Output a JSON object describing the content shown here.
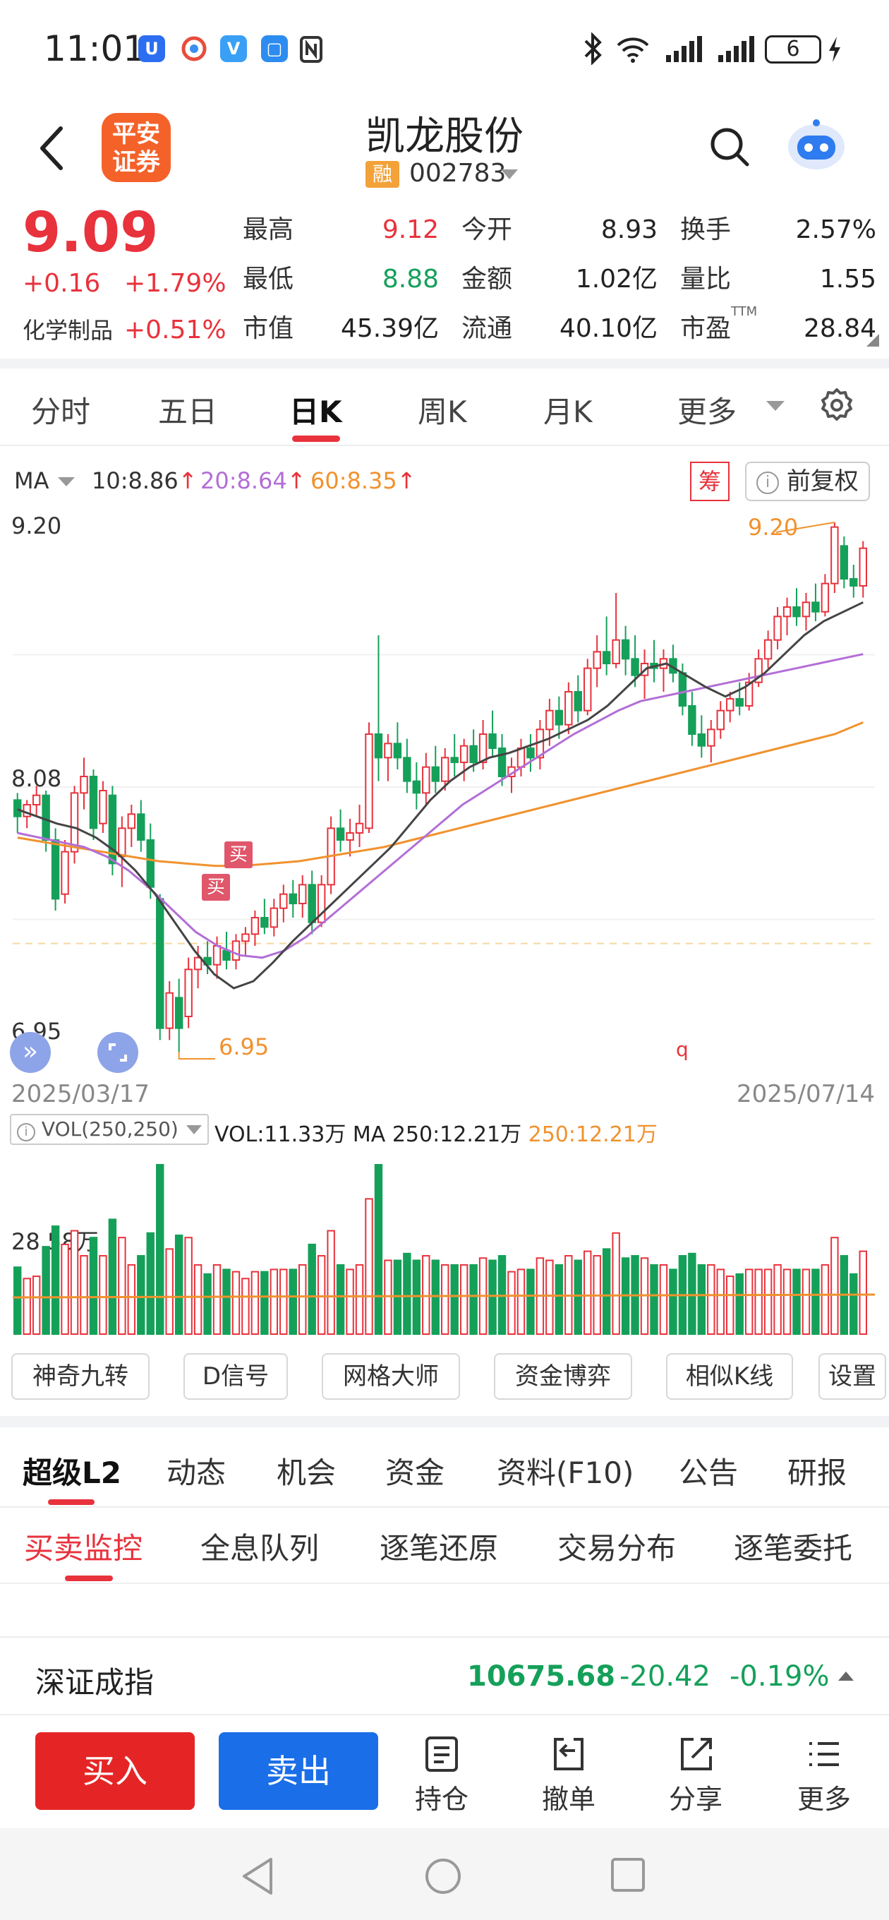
{
  "status_bar": {
    "time": "11:01",
    "battery": "6",
    "icons": [
      "app-icon-1",
      "browser-icon",
      "app-icon-3",
      "message-icon",
      "nfc-icon",
      "bluetooth-icon",
      "wifi-icon",
      "signal-icon",
      "signal-icon-2",
      "battery-icon",
      "charging-icon"
    ]
  },
  "header": {
    "logo_line1": "平安",
    "logo_line2": "证券",
    "stock_name": "凯龙股份",
    "badge": "融",
    "code": "002783"
  },
  "quote": {
    "price": "9.09",
    "change": "+0.16",
    "change_pct": "+1.79%",
    "sector": "化学制品",
    "sector_pct": "+0.51%",
    "stats": [
      {
        "label": "最高",
        "value": "9.12",
        "color": "red"
      },
      {
        "label": "今开",
        "value": "8.93",
        "color": "black"
      },
      {
        "label": "换手",
        "value": "2.57%",
        "color": "black"
      },
      {
        "label": "最低",
        "value": "8.88",
        "color": "green"
      },
      {
        "label": "金额",
        "value": "1.02亿",
        "color": "black"
      },
      {
        "label": "量比",
        "value": "1.55",
        "color": "black"
      },
      {
        "label": "市值",
        "value": "45.39亿",
        "color": "black"
      },
      {
        "label": "流通",
        "value": "40.10亿",
        "color": "black"
      },
      {
        "label": "市盈",
        "value": "28.84",
        "color": "black"
      }
    ],
    "pe_sup": "TTM"
  },
  "periods": {
    "tabs": [
      "分时",
      "五日",
      "日K",
      "周K",
      "月K",
      "更多"
    ],
    "active": "日K"
  },
  "ma_legend": {
    "label": "MA",
    "ma10": "10:8.86",
    "ma20": "20:8.64",
    "ma60": "60:8.35",
    "chip_label": "筹",
    "adjust_label": "前复权"
  },
  "kline": {
    "y_top": "9.20",
    "y_mid": "8.08",
    "y_bottom": "6.95",
    "max_label": "9.20",
    "min_label": "6.95",
    "date_start": "2025/03/17",
    "date_end": "2025/07/14",
    "marker": "q",
    "buy_marker": "买"
  },
  "volume": {
    "indicator": "VOL(250,250)",
    "vol_text": "VOL:11.33万",
    "ma_text": "MA 250:12.21万",
    "ma_orange": "250:12.21万",
    "axis_label": "28.58万"
  },
  "functions": [
    "神奇九转",
    "D信号",
    "网格大师",
    "资金博弈",
    "相似K线",
    "设置"
  ],
  "l2_tabs": [
    "超级L2",
    "动态",
    "机会",
    "资金",
    "资料(F10)",
    "公告",
    "研报"
  ],
  "sub_tabs": [
    "买卖监控",
    "全息队列",
    "逐笔还原",
    "交易分布",
    "逐笔委托"
  ],
  "index_bar": {
    "name": "深证成指",
    "value": "10675.68",
    "change": "-20.42",
    "change_pct": "-0.19%"
  },
  "actions": {
    "buy": "买入",
    "sell": "卖出",
    "items": [
      "持仓",
      "撤单",
      "分享",
      "更多"
    ]
  },
  "colors": {
    "up": "#e8323c",
    "down": "#15a05a",
    "ma10": "#444444",
    "ma20": "#b36ed6",
    "ma60": "#f0922e",
    "buy_button": "#e52525",
    "sell_button": "#1a6ee8"
  },
  "chart_data": {
    "type": "candlestick",
    "x_range": [
      "2025/03/17",
      "2025/07/14"
    ],
    "ylim": [
      6.95,
      9.2
    ],
    "candles": [
      [
        8.02,
        8.05,
        7.88,
        7.95
      ],
      [
        7.95,
        8.02,
        7.9,
        8.0
      ],
      [
        8.0,
        8.08,
        7.95,
        8.04
      ],
      [
        8.04,
        8.06,
        7.8,
        7.85
      ],
      [
        7.85,
        7.9,
        7.55,
        7.6
      ],
      [
        7.62,
        7.85,
        7.58,
        7.8
      ],
      [
        7.8,
        8.08,
        7.75,
        8.05
      ],
      [
        8.05,
        8.2,
        7.98,
        8.12
      ],
      [
        8.12,
        8.15,
        7.85,
        7.9
      ],
      [
        7.92,
        8.1,
        7.88,
        8.06
      ],
      [
        8.04,
        8.08,
        7.7,
        7.75
      ],
      [
        7.78,
        7.95,
        7.65,
        7.9
      ],
      [
        7.9,
        8.0,
        7.82,
        7.96
      ],
      [
        7.96,
        8.02,
        7.8,
        7.85
      ],
      [
        7.85,
        7.92,
        7.6,
        7.65
      ],
      [
        7.6,
        7.62,
        7.0,
        7.05
      ],
      [
        7.05,
        7.25,
        7.0,
        7.2
      ],
      [
        7.18,
        7.26,
        6.95,
        7.05
      ],
      [
        7.1,
        7.35,
        7.05,
        7.3
      ],
      [
        7.3,
        7.4,
        7.22,
        7.35
      ],
      [
        7.35,
        7.42,
        7.28,
        7.32
      ],
      [
        7.32,
        7.44,
        7.26,
        7.4
      ],
      [
        7.38,
        7.46,
        7.3,
        7.34
      ],
      [
        7.34,
        7.45,
        7.3,
        7.42
      ],
      [
        7.42,
        7.48,
        7.36,
        7.45
      ],
      [
        7.45,
        7.55,
        7.4,
        7.52
      ],
      [
        7.52,
        7.6,
        7.45,
        7.48
      ],
      [
        7.48,
        7.6,
        7.44,
        7.56
      ],
      [
        7.56,
        7.66,
        7.5,
        7.62
      ],
      [
        7.62,
        7.68,
        7.52,
        7.58
      ],
      [
        7.58,
        7.7,
        7.52,
        7.66
      ],
      [
        7.66,
        7.72,
        7.45,
        7.5
      ],
      [
        7.5,
        7.7,
        7.48,
        7.66
      ],
      [
        7.66,
        7.95,
        7.62,
        7.9
      ],
      [
        7.9,
        7.98,
        7.8,
        7.85
      ],
      [
        7.85,
        7.94,
        7.78,
        7.88
      ],
      [
        7.88,
        8.0,
        7.82,
        7.92
      ],
      [
        7.9,
        8.35,
        7.88,
        8.3
      ],
      [
        8.3,
        8.72,
        8.1,
        8.2
      ],
      [
        8.2,
        8.3,
        8.1,
        8.26
      ],
      [
        8.26,
        8.35,
        8.15,
        8.2
      ],
      [
        8.2,
        8.28,
        8.05,
        8.1
      ],
      [
        8.1,
        8.18,
        7.98,
        8.05
      ],
      [
        8.05,
        8.22,
        8.0,
        8.16
      ],
      [
        8.16,
        8.25,
        8.05,
        8.1
      ],
      [
        8.1,
        8.24,
        8.06,
        8.2
      ],
      [
        8.2,
        8.3,
        8.12,
        8.18
      ],
      [
        8.18,
        8.28,
        8.1,
        8.25
      ],
      [
        8.25,
        8.32,
        8.14,
        8.18
      ],
      [
        8.18,
        8.36,
        8.15,
        8.3
      ],
      [
        8.3,
        8.4,
        8.2,
        8.24
      ],
      [
        8.24,
        8.3,
        8.08,
        8.12
      ],
      [
        8.12,
        8.2,
        8.05,
        8.16
      ],
      [
        8.16,
        8.28,
        8.12,
        8.24
      ],
      [
        8.24,
        8.3,
        8.14,
        8.2
      ],
      [
        8.2,
        8.36,
        8.15,
        8.32
      ],
      [
        8.32,
        8.45,
        8.25,
        8.4
      ],
      [
        8.4,
        8.46,
        8.28,
        8.34
      ],
      [
        8.34,
        8.52,
        8.3,
        8.48
      ],
      [
        8.48,
        8.55,
        8.35,
        8.4
      ],
      [
        8.4,
        8.62,
        8.38,
        8.58
      ],
      [
        8.58,
        8.72,
        8.5,
        8.65
      ],
      [
        8.65,
        8.8,
        8.55,
        8.6
      ],
      [
        8.6,
        8.9,
        8.58,
        8.7
      ],
      [
        8.7,
        8.76,
        8.55,
        8.62
      ],
      [
        8.62,
        8.72,
        8.5,
        8.55
      ],
      [
        8.55,
        8.66,
        8.45,
        8.6
      ],
      [
        8.6,
        8.7,
        8.52,
        8.58
      ],
      [
        8.58,
        8.66,
        8.48,
        8.62
      ],
      [
        8.62,
        8.68,
        8.52,
        8.56
      ],
      [
        8.56,
        8.6,
        8.38,
        8.42
      ],
      [
        8.42,
        8.48,
        8.25,
        8.3
      ],
      [
        8.3,
        8.38,
        8.2,
        8.25
      ],
      [
        8.25,
        8.36,
        8.18,
        8.32
      ],
      [
        8.32,
        8.44,
        8.28,
        8.4
      ],
      [
        8.4,
        8.48,
        8.35,
        8.45
      ],
      [
        8.45,
        8.52,
        8.38,
        8.42
      ],
      [
        8.42,
        8.56,
        8.4,
        8.52
      ],
      [
        8.52,
        8.66,
        8.5,
        8.62
      ],
      [
        8.62,
        8.74,
        8.58,
        8.7
      ],
      [
        8.7,
        8.84,
        8.66,
        8.8
      ],
      [
        8.8,
        8.88,
        8.72,
        8.84
      ],
      [
        8.84,
        8.92,
        8.76,
        8.8
      ],
      [
        8.8,
        8.9,
        8.74,
        8.86
      ],
      [
        8.86,
        8.94,
        8.78,
        8.82
      ],
      [
        8.82,
        8.98,
        8.8,
        8.94
      ],
      [
        8.94,
        9.2,
        8.9,
        9.18
      ],
      [
        9.1,
        9.14,
        8.92,
        8.96
      ],
      [
        8.96,
        9.02,
        8.88,
        8.93
      ],
      [
        8.93,
        9.12,
        8.88,
        9.09
      ]
    ],
    "ma10": [
      7.98,
      7.95,
      7.92,
      7.9,
      7.86,
      7.8,
      7.72,
      7.62,
      7.5,
      7.38,
      7.28,
      7.22,
      7.25,
      7.33,
      7.42,
      7.5,
      7.58,
      7.66,
      7.74,
      7.82,
      7.92,
      8.02,
      8.1,
      8.16,
      8.2,
      8.22,
      8.25,
      8.28,
      8.32,
      8.36,
      8.42,
      8.5,
      8.58,
      8.6,
      8.55,
      8.5,
      8.46,
      8.5,
      8.56,
      8.64,
      8.72,
      8.78,
      8.82,
      8.86
    ],
    "ma20": [
      7.88,
      7.86,
      7.84,
      7.82,
      7.78,
      7.72,
      7.64,
      7.55,
      7.46,
      7.4,
      7.36,
      7.35,
      7.38,
      7.44,
      7.52,
      7.6,
      7.68,
      7.76,
      7.84,
      7.92,
      8.0,
      8.06,
      8.12,
      8.18,
      8.24,
      8.3,
      8.35,
      8.4,
      8.44,
      8.46,
      8.48,
      8.5,
      8.52,
      8.54,
      8.56,
      8.58,
      8.6,
      8.62,
      8.64
    ],
    "ma60": [
      7.86,
      7.84,
      7.82,
      7.8,
      7.78,
      7.76,
      7.75,
      7.74,
      7.74,
      7.75,
      7.76,
      7.78,
      7.8,
      7.82,
      7.85,
      7.88,
      7.91,
      7.94,
      7.97,
      8.0,
      8.03,
      8.06,
      8.09,
      8.12,
      8.15,
      8.18,
      8.21,
      8.24,
      8.27,
      8.3,
      8.35
    ],
    "volume": {
      "axis_max": "28.58万",
      "ma250": "12.21万",
      "last": "11.33万"
    }
  }
}
